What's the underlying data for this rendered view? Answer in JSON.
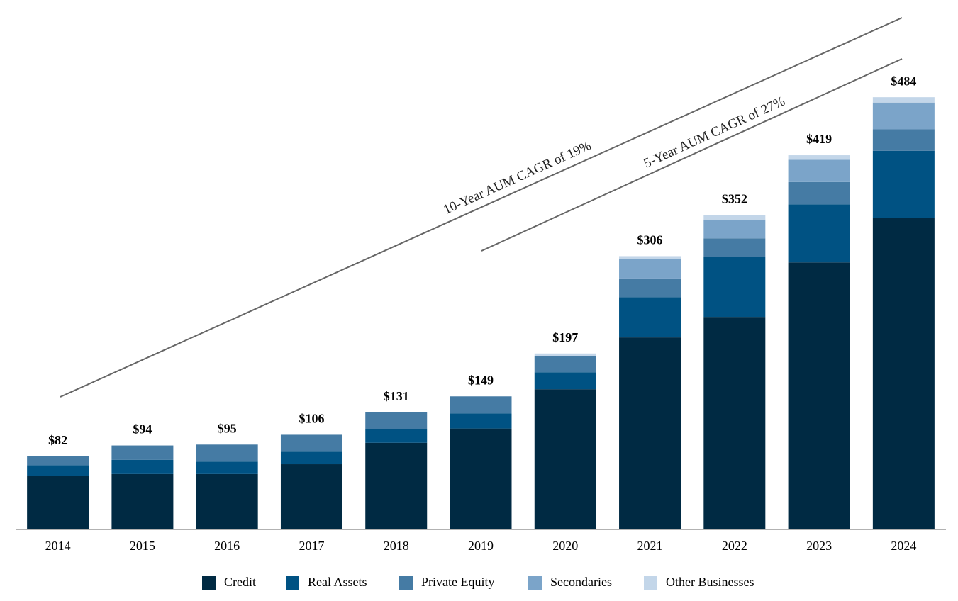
{
  "chart_data": {
    "type": "stacked-bar",
    "categories": [
      "2014",
      "2015",
      "2016",
      "2017",
      "2018",
      "2019",
      "2020",
      "2021",
      "2022",
      "2023",
      "2024"
    ],
    "series": [
      {
        "name": "Credit",
        "color": "#002a43",
        "values": [
          60,
          62,
          62,
          73,
          97,
          113,
          157,
          215,
          238,
          299,
          349
        ]
      },
      {
        "name": "Real Assets",
        "color": "#005283",
        "values": [
          12,
          16,
          14,
          14,
          15,
          17,
          19,
          45,
          67,
          65,
          75
        ]
      },
      {
        "name": "Private Equity",
        "color": "#457ba4",
        "values": [
          10,
          16,
          19,
          19,
          19,
          19,
          18,
          21,
          21,
          25,
          24
        ]
      },
      {
        "name": "Secondaries",
        "color": "#7ba4c9",
        "values": [
          0,
          0,
          0,
          0,
          0,
          0,
          0,
          22,
          21,
          25,
          30
        ]
      },
      {
        "name": "Other Businesses",
        "color": "#c3d6e9",
        "values": [
          0,
          0,
          0,
          0,
          0,
          0,
          3,
          3,
          5,
          5,
          6
        ]
      }
    ],
    "totals": [
      82,
      94,
      95,
      106,
      131,
      149,
      197,
      306,
      352,
      419,
      484
    ],
    "total_labels": [
      "$82",
      "$94",
      "$95",
      "$106",
      "$131",
      "$149",
      "$197",
      "$306",
      "$352",
      "$419",
      "$484"
    ],
    "ylim": [
      0,
      500
    ],
    "annotations": [
      "10-Year AUM CAGR of 19%",
      "5-Year AUM CAGR of 27%"
    ]
  }
}
